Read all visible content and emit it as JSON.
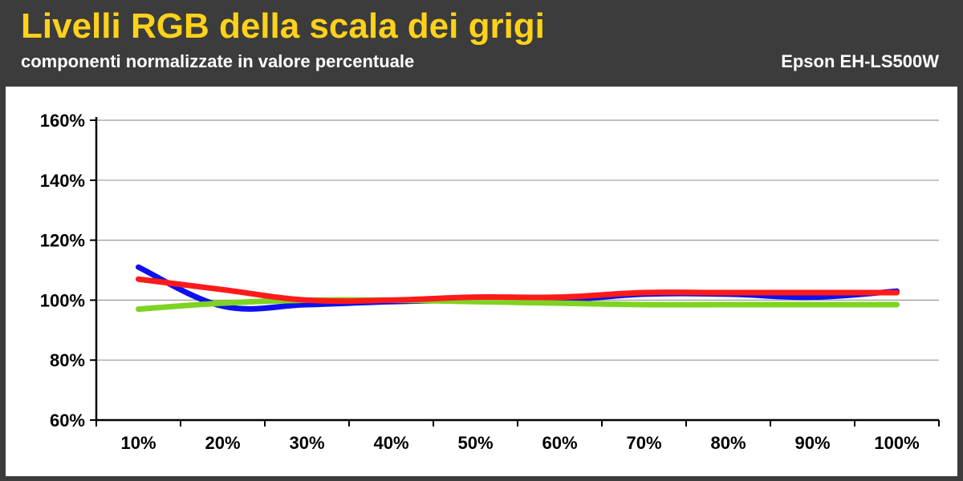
{
  "header": {
    "title": "Livelli RGB della scala dei grigi",
    "subtitle": "componenti normalizzate in valore percentuale",
    "model": "Epson EH-LS500W"
  },
  "chart_data": {
    "type": "line",
    "categories": [
      "10%",
      "20%",
      "30%",
      "40%",
      "50%",
      "60%",
      "70%",
      "80%",
      "90%",
      "100%"
    ],
    "y_ticks": [
      "60%",
      "80%",
      "100%",
      "120%",
      "140%",
      "160%"
    ],
    "ylim": [
      60,
      160
    ],
    "grid": true,
    "legend": "none",
    "series": [
      {
        "color": "#1010ee",
        "values": [
          111,
          98,
          98.5,
          99.5,
          100,
          100,
          102,
          102,
          101,
          103
        ]
      },
      {
        "color": "#7ed321",
        "values": [
          97,
          99,
          100,
          100,
          99.5,
          99,
          98.5,
          98.5,
          98.5,
          98.5
        ]
      },
      {
        "color": "#ff1a1a",
        "values": [
          107,
          103.5,
          100,
          100,
          101,
          101,
          102.5,
          102.5,
          102.5,
          102.5
        ]
      }
    ]
  }
}
